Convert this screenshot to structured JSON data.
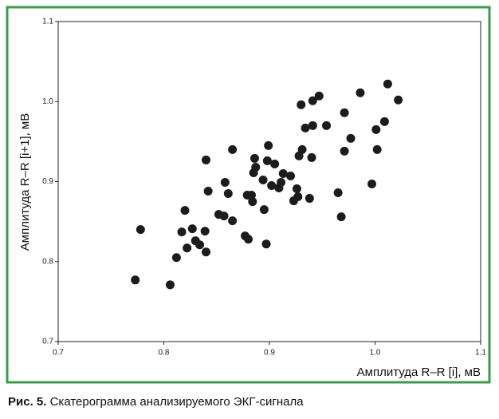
{
  "chart_data": {
    "type": "scatter",
    "xlabel": "Амплитуда R–R [i], мВ",
    "ylabel": "Амплитуда R–R [i+1], мВ",
    "xlim": [
      0.7,
      1.1
    ],
    "ylim": [
      0.7,
      1.1
    ],
    "xticks": [
      0.7,
      0.8,
      0.9,
      {
        "value": 1,
        "label": "1.0"
      },
      1.1
    ],
    "yticks": [
      0.7,
      0.8,
      0.9,
      {
        "value": 1,
        "label": "1.0"
      },
      1.1
    ],
    "color": "#1c1c1c",
    "x": [
      0.773,
      0.778,
      0.806,
      0.812,
      0.817,
      0.82,
      0.822,
      0.827,
      0.83,
      0.834,
      0.839,
      0.84,
      0.84,
      0.842,
      0.852,
      0.857,
      0.858,
      0.861,
      0.865,
      0.865,
      0.877,
      0.879,
      0.88,
      0.883,
      0.884,
      0.885,
      0.886,
      0.887,
      0.894,
      0.895,
      0.897,
      0.898,
      0.899,
      0.902,
      0.905,
      0.909,
      0.911,
      0.913,
      0.92,
      0.923,
      0.926,
      0.927,
      0.928,
      0.93,
      0.931,
      0.934,
      0.938,
      0.94,
      0.941,
      0.941,
      0.947,
      0.954,
      0.965,
      0.968,
      0.971,
      0.971,
      0.977,
      0.986,
      0.997,
      1.001,
      1.002,
      1.009,
      1.012,
      1.022
    ],
    "values": [
      0.777,
      0.84,
      0.771,
      0.805,
      0.837,
      0.864,
      0.817,
      0.841,
      0.826,
      0.821,
      0.838,
      0.812,
      0.927,
      0.888,
      0.859,
      0.857,
      0.899,
      0.885,
      0.94,
      0.851,
      0.832,
      0.883,
      0.828,
      0.883,
      0.875,
      0.911,
      0.929,
      0.918,
      0.902,
      0.865,
      0.822,
      0.926,
      0.945,
      0.895,
      0.922,
      0.892,
      0.899,
      0.91,
      0.907,
      0.876,
      0.891,
      0.881,
      0.932,
      0.996,
      0.94,
      0.967,
      0.879,
      0.93,
      0.97,
      1.001,
      1.007,
      0.97,
      0.886,
      0.856,
      0.986,
      0.938,
      0.954,
      1.011,
      0.897,
      0.965,
      0.94,
      0.975,
      1.022,
      1.002
    ]
  },
  "caption": {
    "label": "Рис. 5.",
    "text": "Скатерограмма анализируемого ЭКГ-сигнала"
  }
}
